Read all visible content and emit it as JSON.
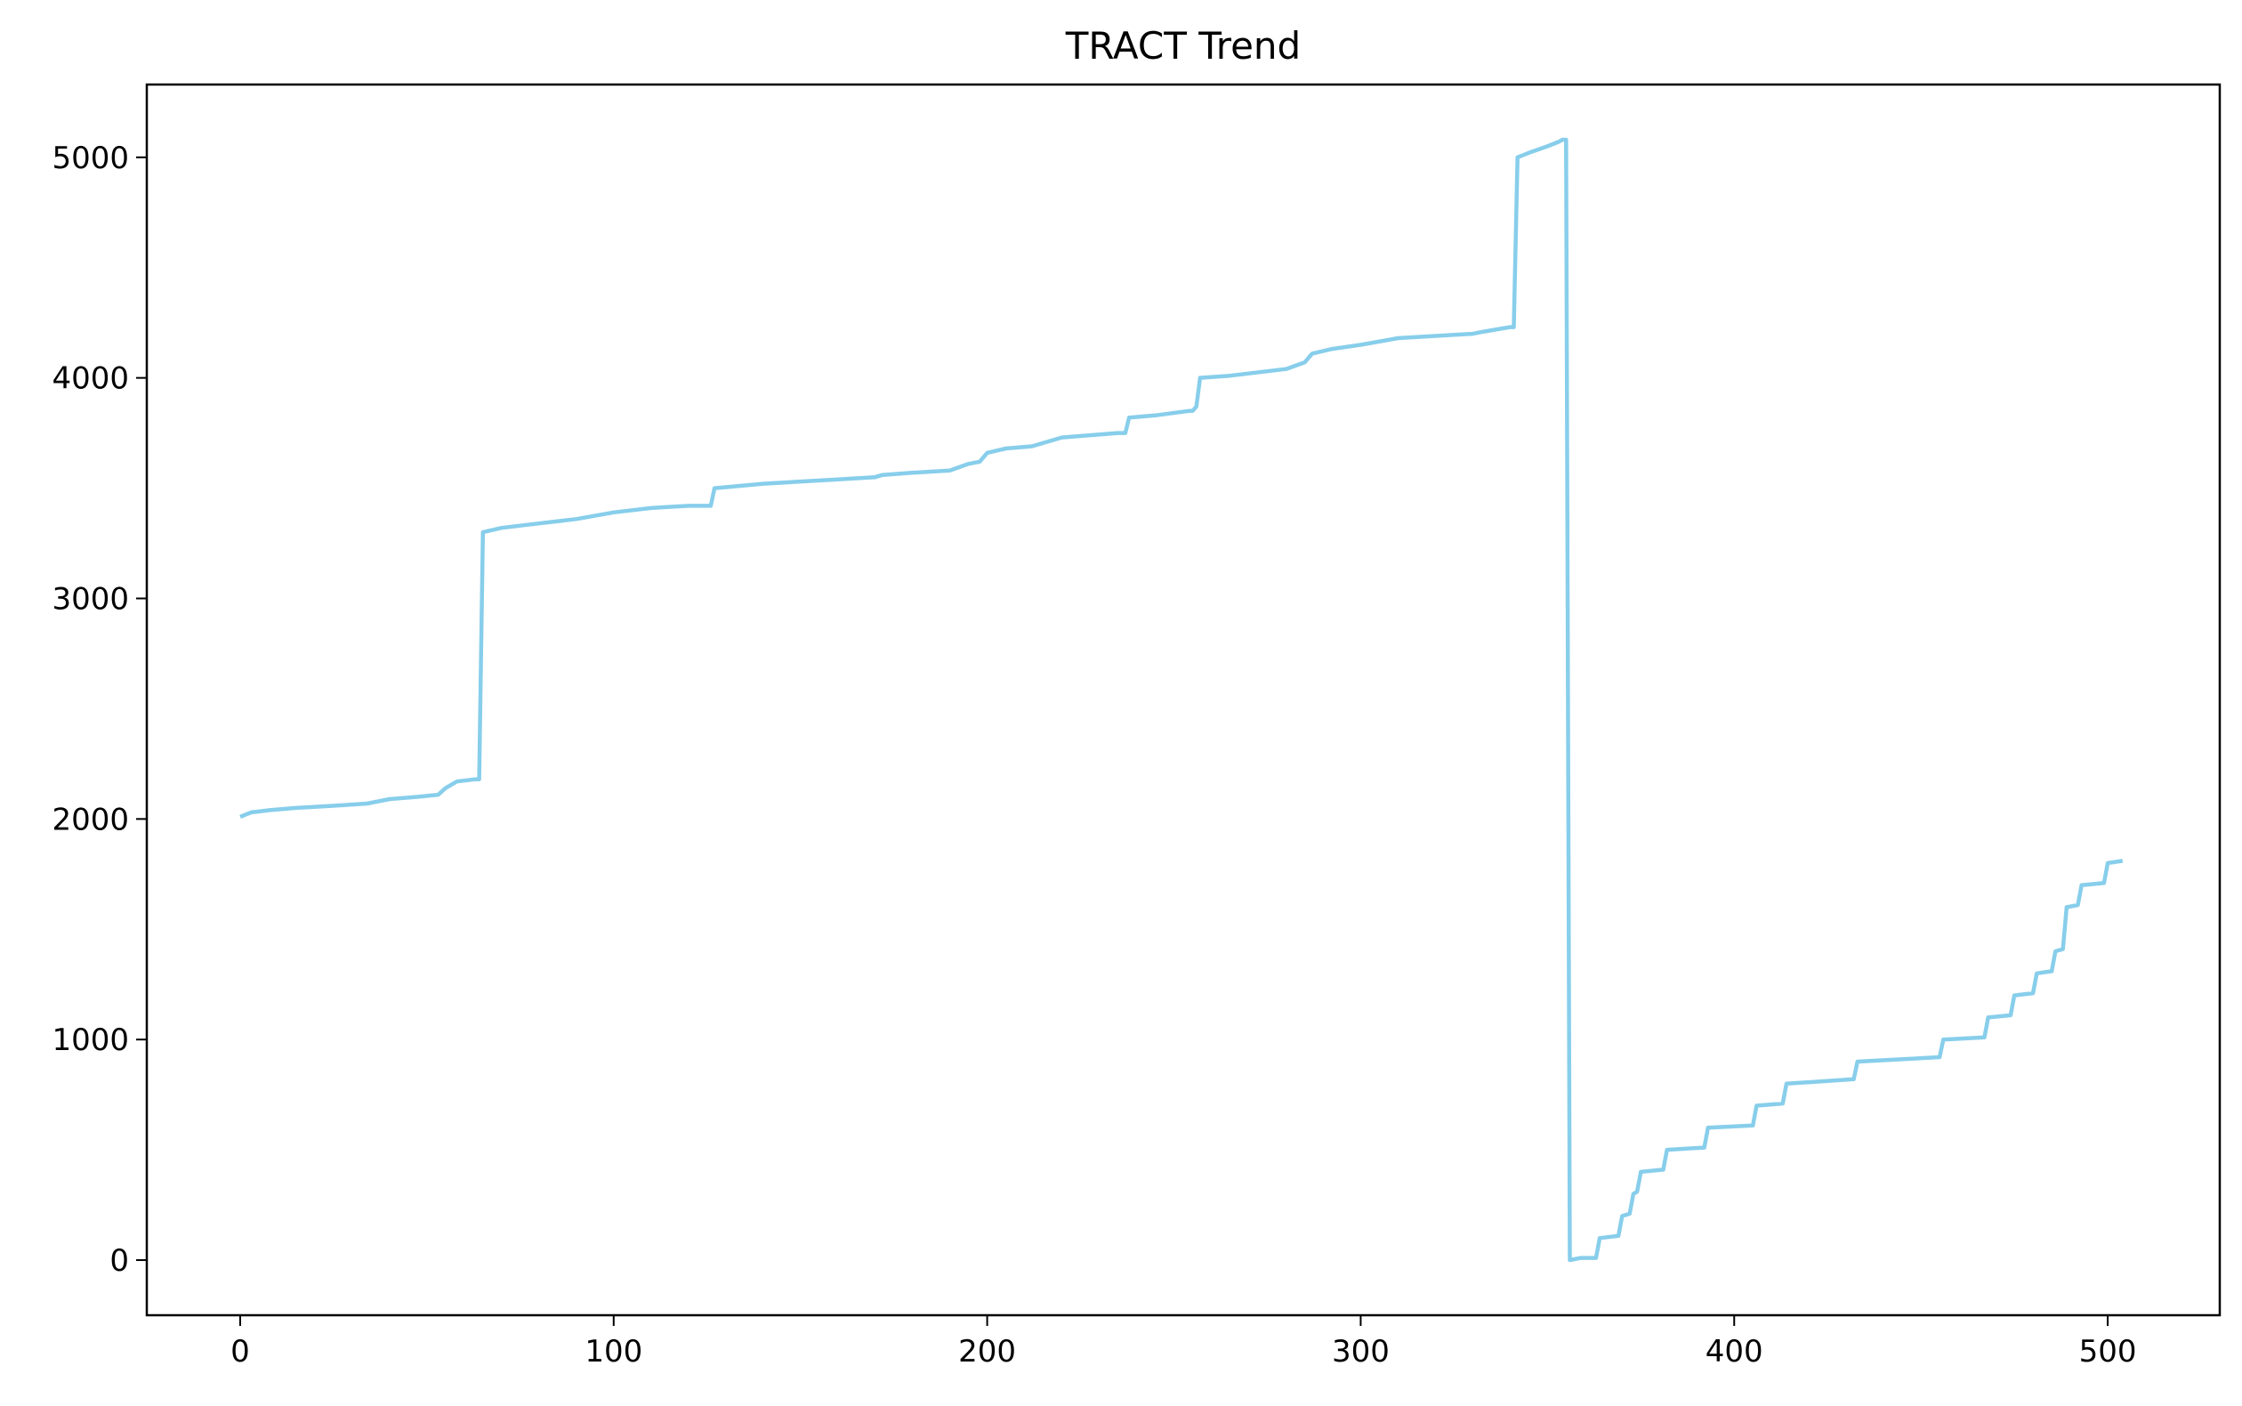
{
  "chart_data": {
    "type": "line",
    "title": "TRACT Trend",
    "xlabel": "",
    "ylabel": "",
    "xlim": [
      -25,
      530
    ],
    "ylim": [
      -250,
      5330
    ],
    "xticks": [
      0,
      100,
      200,
      300,
      400,
      500
    ],
    "yticks": [
      0,
      1000,
      2000,
      3000,
      4000,
      5000
    ],
    "grid": false,
    "legend": "none",
    "colors": {
      "line": "#87CEEB",
      "axes": "#000000"
    },
    "series": [
      {
        "x": [
          0,
          3,
          8,
          15,
          25,
          34,
          40,
          47,
          53,
          55,
          58,
          63,
          64,
          65,
          70,
          80,
          90,
          100,
          110,
          120,
          126,
          127,
          140,
          160,
          170,
          172,
          180,
          190,
          195,
          198,
          200,
          205,
          212,
          220,
          235,
          237,
          238,
          245,
          254,
          255,
          256,
          257,
          265,
          270,
          280,
          285,
          287,
          292,
          300,
          310,
          320,
          330,
          333,
          340,
          341,
          342,
          345,
          350,
          353,
          354,
          355,
          356,
          359,
          363,
          364,
          369,
          370,
          372,
          373,
          374,
          375,
          381,
          382,
          392,
          393,
          405,
          406,
          413,
          414,
          432,
          433,
          455,
          456,
          467,
          468,
          474,
          475,
          480,
          481,
          485,
          486,
          488,
          489,
          492,
          493,
          499,
          500,
          504
        ],
        "y": [
          2010,
          2030,
          2040,
          2050,
          2060,
          2070,
          2090,
          2100,
          2110,
          2140,
          2170,
          2180,
          2180,
          3300,
          3320,
          3340,
          3360,
          3390,
          3410,
          3420,
          3420,
          3500,
          3520,
          3540,
          3550,
          3560,
          3570,
          3580,
          3610,
          3620,
          3660,
          3680,
          3690,
          3730,
          3750,
          3750,
          3820,
          3830,
          3850,
          3850,
          3870,
          4000,
          4010,
          4020,
          4040,
          4070,
          4110,
          4130,
          4150,
          4180,
          4190,
          4200,
          4210,
          4230,
          4230,
          5000,
          5020,
          5050,
          5070,
          5080,
          5080,
          0,
          10,
          10,
          100,
          110,
          200,
          210,
          300,
          310,
          400,
          410,
          500,
          510,
          600,
          610,
          700,
          710,
          800,
          820,
          900,
          920,
          1000,
          1010,
          1100,
          1110,
          1200,
          1210,
          1300,
          1310,
          1400,
          1410,
          1600,
          1610,
          1700,
          1710,
          1800,
          1810
        ]
      }
    ]
  }
}
